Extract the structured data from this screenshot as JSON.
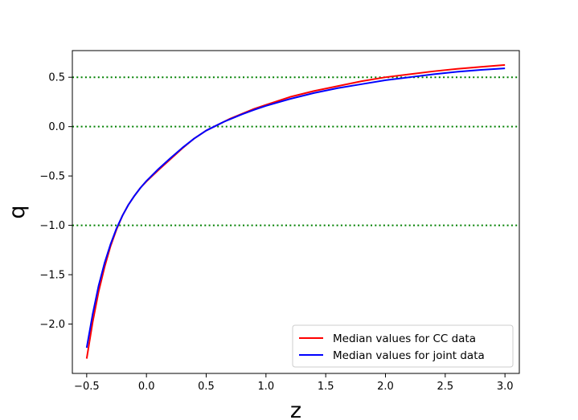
{
  "chart_data": {
    "type": "line",
    "title": "",
    "xlabel": "z",
    "ylabel": "q",
    "xlim": [
      -0.62,
      3.12
    ],
    "ylim": [
      -2.5,
      0.77
    ],
    "xticks": [
      -0.5,
      0.0,
      0.5,
      1.0,
      1.5,
      2.0,
      2.5,
      3.0
    ],
    "xtick_labels": [
      "−0.5",
      "0.0",
      "0.5",
      "1.0",
      "1.5",
      "2.0",
      "2.5",
      "3.0"
    ],
    "yticks": [
      -2.0,
      -1.5,
      -1.0,
      -0.5,
      0.0,
      0.5
    ],
    "ytick_labels": [
      "−2.0",
      "−1.5",
      "−1.0",
      "−0.5",
      "0.0",
      "0.5"
    ],
    "grid": false,
    "legend_position": "bottom-right",
    "reference_lines": [
      {
        "y": 0.5,
        "color": "#008000",
        "style": "dotted"
      },
      {
        "y": 0.0,
        "color": "#008000",
        "style": "dotted"
      },
      {
        "y": -1.0,
        "color": "#008000",
        "style": "dotted"
      }
    ],
    "series": [
      {
        "name": "Median values for CC data",
        "color": "#ff0000",
        "x": [
          -0.5,
          -0.45,
          -0.4,
          -0.35,
          -0.3,
          -0.25,
          -0.2,
          -0.15,
          -0.1,
          -0.05,
          0.0,
          0.1,
          0.2,
          0.3,
          0.4,
          0.5,
          0.6,
          0.65,
          0.7,
          0.8,
          0.9,
          1.0,
          1.2,
          1.4,
          1.6,
          1.8,
          2.0,
          2.2,
          2.4,
          2.6,
          2.8,
          3.0
        ],
        "y": [
          -2.35,
          -1.98,
          -1.67,
          -1.42,
          -1.21,
          -1.04,
          -0.9,
          -0.79,
          -0.7,
          -0.62,
          -0.555,
          -0.44,
          -0.33,
          -0.22,
          -0.12,
          -0.04,
          0.02,
          0.05,
          0.08,
          0.13,
          0.18,
          0.22,
          0.3,
          0.36,
          0.41,
          0.46,
          0.5,
          0.53,
          0.56,
          0.585,
          0.605,
          0.625
        ]
      },
      {
        "name": "Median values for joint data",
        "color": "#0000ff",
        "x": [
          -0.5,
          -0.45,
          -0.4,
          -0.35,
          -0.3,
          -0.25,
          -0.2,
          -0.15,
          -0.1,
          -0.05,
          0.0,
          0.1,
          0.2,
          0.3,
          0.4,
          0.5,
          0.6,
          0.65,
          0.7,
          0.8,
          0.9,
          1.0,
          1.2,
          1.4,
          1.6,
          1.8,
          2.0,
          2.2,
          2.4,
          2.6,
          2.8,
          3.0
        ],
        "y": [
          -2.24,
          -1.9,
          -1.61,
          -1.38,
          -1.19,
          -1.03,
          -0.9,
          -0.79,
          -0.7,
          -0.62,
          -0.55,
          -0.43,
          -0.32,
          -0.215,
          -0.12,
          -0.04,
          0.02,
          0.05,
          0.075,
          0.125,
          0.17,
          0.21,
          0.28,
          0.34,
          0.39,
          0.43,
          0.47,
          0.5,
          0.53,
          0.555,
          0.575,
          0.59
        ]
      }
    ]
  }
}
